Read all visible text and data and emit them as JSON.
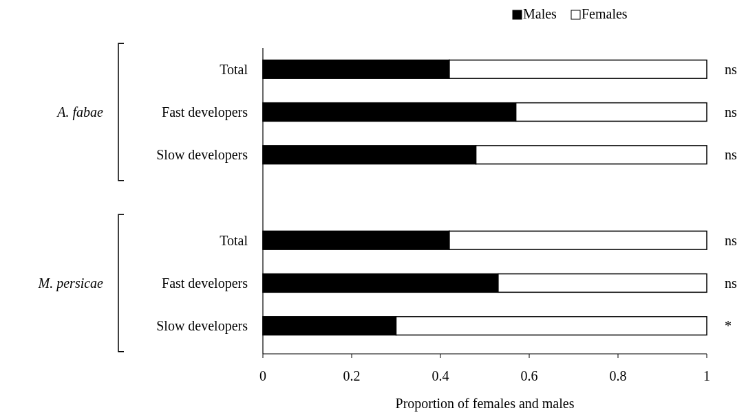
{
  "chart_data": {
    "type": "bar",
    "orientation": "horizontal",
    "stacked": true,
    "categories": [
      "Total",
      "Fast developers",
      "Slow developers",
      null,
      "Total",
      "Fast developers",
      "Slow developers"
    ],
    "series": [
      {
        "name": "Males",
        "color": "#000000",
        "values": [
          0.42,
          0.57,
          0.48,
          null,
          0.42,
          0.53,
          0.3
        ]
      },
      {
        "name": "Females",
        "color": "#ffffff",
        "values": [
          0.58,
          0.43,
          0.52,
          null,
          0.58,
          0.47,
          0.7
        ],
        "value_labels": [
          "ns",
          "ns",
          "ns",
          null,
          "ns",
          "ns",
          "*"
        ]
      }
    ],
    "xlim": [
      0,
      1
    ],
    "xticks": [
      0,
      0.2,
      0.4,
      0.6,
      0.8,
      1
    ],
    "xlabel": "Proportion of females and males",
    "annotations": [
      "A. fabae",
      "M. persicae"
    ],
    "legend": "top right",
    "grid": false
  }
}
